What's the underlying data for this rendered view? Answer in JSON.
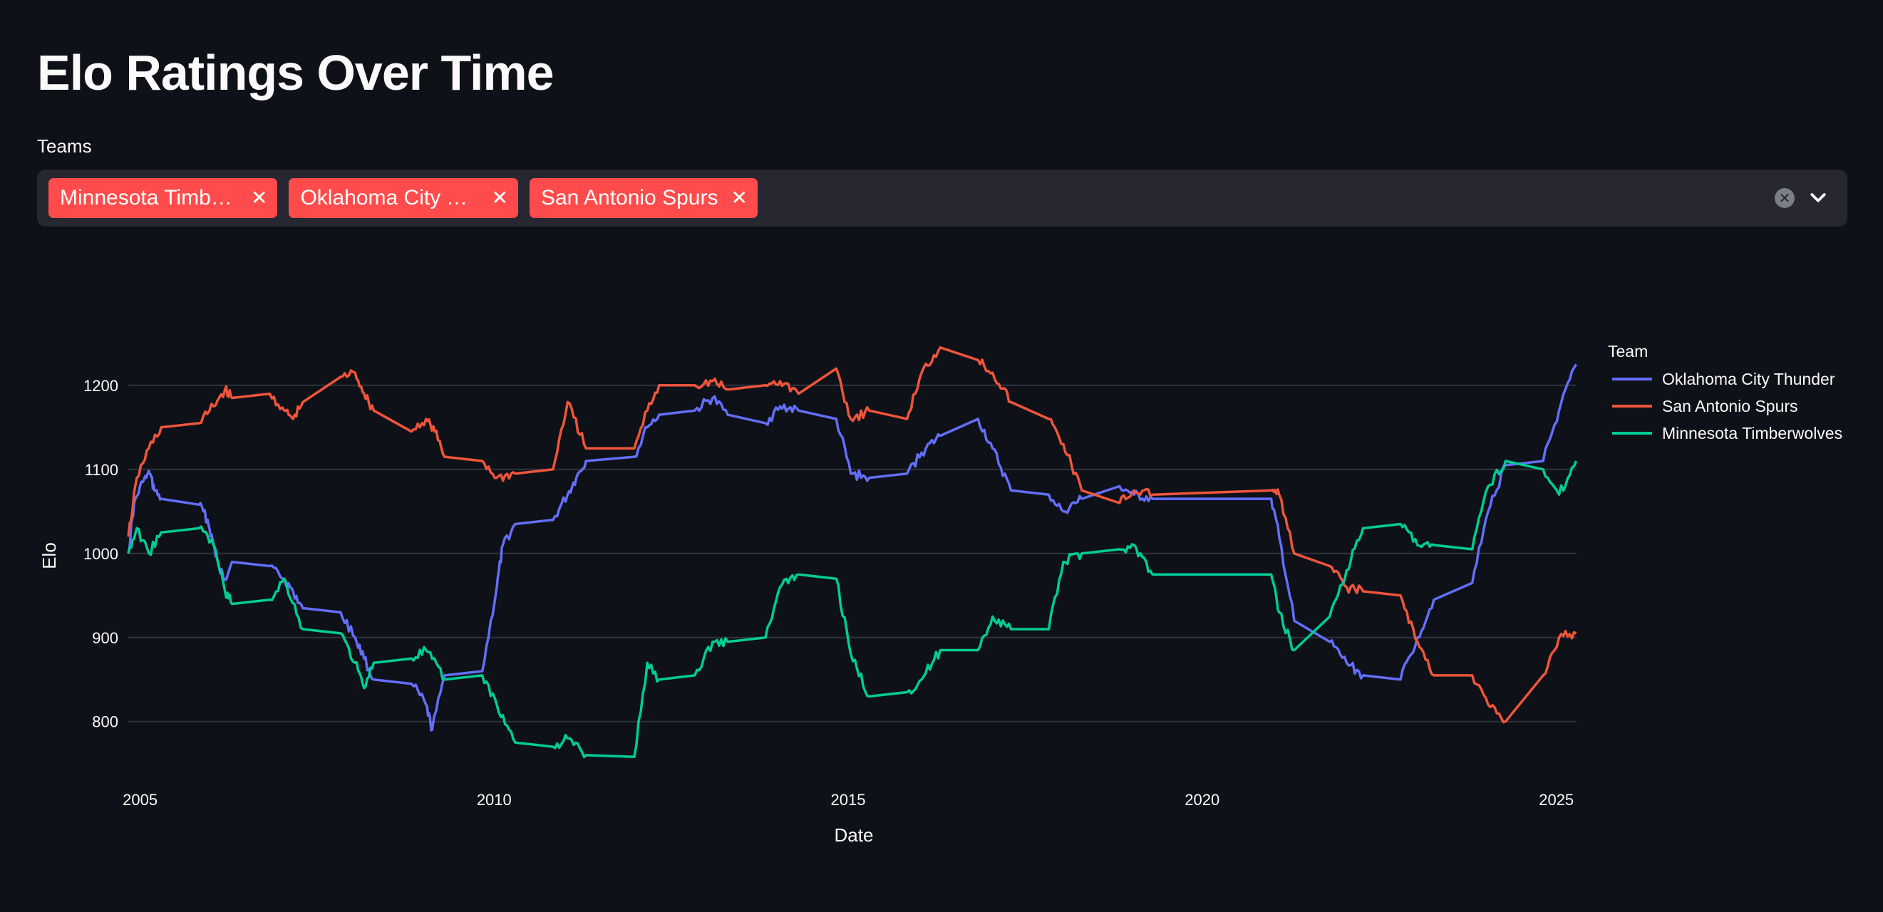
{
  "page": {
    "title": "Elo Ratings Over Time"
  },
  "teams_select": {
    "label": "Teams",
    "selected": [
      "Minnesota Timberwolves",
      "Oklahoma City Thunder",
      "San Antonio Spurs"
    ],
    "clear_icon": "clear-all-icon",
    "open_icon": "chevron-down-icon"
  },
  "chart_data": {
    "type": "line",
    "title": "",
    "xlabel": "Date",
    "ylabel": "Elo",
    "xlim": [
      "2004-11-01",
      "2025-04-15"
    ],
    "ylim": [
      743,
      1260
    ],
    "x_ticks": [
      "2005",
      "2010",
      "2015",
      "2020",
      "2025"
    ],
    "y_ticks": [
      800,
      900,
      1000,
      1100,
      1200
    ],
    "grid": true,
    "legend": {
      "title": "Team",
      "position": "right"
    },
    "series": [
      {
        "name": "Oklahoma City Thunder",
        "color": "#636efa",
        "points": [
          [
            "2004-11-01",
            1000
          ],
          [
            "2004-12-01",
            1060
          ],
          [
            "2005-01-15",
            1085
          ],
          [
            "2005-02-20",
            1095
          ],
          [
            "2005-03-15",
            1075
          ],
          [
            "2005-04-20",
            1065
          ],
          [
            "2005-11-01",
            1058
          ],
          [
            "2005-12-15",
            1040
          ],
          [
            "2006-01-15",
            1010
          ],
          [
            "2006-02-15",
            980
          ],
          [
            "2006-03-15",
            970
          ],
          [
            "2006-04-20",
            990
          ],
          [
            "2006-11-01",
            985
          ],
          [
            "2007-01-15",
            970
          ],
          [
            "2007-03-01",
            955
          ],
          [
            "2007-04-20",
            935
          ],
          [
            "2007-11-01",
            930
          ],
          [
            "2008-01-15",
            900
          ],
          [
            "2008-03-01",
            875
          ],
          [
            "2008-04-20",
            850
          ],
          [
            "2008-11-01",
            845
          ],
          [
            "2009-01-15",
            820
          ],
          [
            "2009-02-15",
            790
          ],
          [
            "2009-04-20",
            855
          ],
          [
            "2009-11-01",
            860
          ],
          [
            "2010-01-15",
            960
          ],
          [
            "2010-02-15",
            1010
          ],
          [
            "2010-04-20",
            1035
          ],
          [
            "2010-11-01",
            1040
          ],
          [
            "2011-01-15",
            1070
          ],
          [
            "2011-03-01",
            1090
          ],
          [
            "2011-04-20",
            1110
          ],
          [
            "2011-12-25",
            1115
          ],
          [
            "2012-03-01",
            1150
          ],
          [
            "2012-05-01",
            1165
          ],
          [
            "2012-11-01",
            1170
          ],
          [
            "2013-02-01",
            1185
          ],
          [
            "2013-04-20",
            1165
          ],
          [
            "2013-11-01",
            1155
          ],
          [
            "2014-01-15",
            1175
          ],
          [
            "2014-04-20",
            1170
          ],
          [
            "2014-11-01",
            1160
          ],
          [
            "2015-01-15",
            1095
          ],
          [
            "2015-04-20",
            1090
          ],
          [
            "2015-11-01",
            1095
          ],
          [
            "2016-01-15",
            1120
          ],
          [
            "2016-04-20",
            1140
          ],
          [
            "2016-11-01",
            1160
          ],
          [
            "2017-01-15",
            1125
          ],
          [
            "2017-04-20",
            1075
          ],
          [
            "2017-11-01",
            1070
          ],
          [
            "2018-01-15",
            1050
          ],
          [
            "2018-04-20",
            1065
          ],
          [
            "2018-11-01",
            1080
          ],
          [
            "2019-01-15",
            1070
          ],
          [
            "2019-04-20",
            1065
          ],
          [
            "2020-12-22",
            1065
          ],
          [
            "2021-02-01",
            1020
          ],
          [
            "2021-04-20",
            920
          ],
          [
            "2021-10-20",
            895
          ],
          [
            "2022-01-15",
            870
          ],
          [
            "2022-04-10",
            855
          ],
          [
            "2022-10-20",
            850
          ],
          [
            "2023-01-15",
            900
          ],
          [
            "2023-04-10",
            945
          ],
          [
            "2023-10-25",
            965
          ],
          [
            "2024-01-15",
            1050
          ],
          [
            "2024-04-14",
            1105
          ],
          [
            "2024-10-25",
            1110
          ],
          [
            "2025-01-15",
            1170
          ],
          [
            "2025-04-13",
            1225
          ]
        ]
      },
      {
        "name": "San Antonio Spurs",
        "color": "#ef553b",
        "points": [
          [
            "2004-11-01",
            1020
          ],
          [
            "2004-12-15",
            1090
          ],
          [
            "2005-02-15",
            1125
          ],
          [
            "2005-04-20",
            1150
          ],
          [
            "2005-11-01",
            1155
          ],
          [
            "2006-01-15",
            1175
          ],
          [
            "2006-03-15",
            1195
          ],
          [
            "2006-04-20",
            1185
          ],
          [
            "2006-11-01",
            1190
          ],
          [
            "2007-01-15",
            1170
          ],
          [
            "2007-03-01",
            1160
          ],
          [
            "2007-04-20",
            1180
          ],
          [
            "2007-11-01",
            1210
          ],
          [
            "2008-01-15",
            1215
          ],
          [
            "2008-03-01",
            1190
          ],
          [
            "2008-04-20",
            1170
          ],
          [
            "2008-11-01",
            1145
          ],
          [
            "2009-01-15",
            1160
          ],
          [
            "2009-03-01",
            1145
          ],
          [
            "2009-04-20",
            1115
          ],
          [
            "2009-11-01",
            1110
          ],
          [
            "2010-01-15",
            1090
          ],
          [
            "2010-04-20",
            1095
          ],
          [
            "2010-11-01",
            1100
          ],
          [
            "2011-01-15",
            1180
          ],
          [
            "2011-04-20",
            1125
          ],
          [
            "2011-12-25",
            1125
          ],
          [
            "2012-03-01",
            1170
          ],
          [
            "2012-05-01",
            1200
          ],
          [
            "2012-11-01",
            1200
          ],
          [
            "2013-02-01",
            1205
          ],
          [
            "2013-04-20",
            1195
          ],
          [
            "2013-11-01",
            1200
          ],
          [
            "2014-01-15",
            1205
          ],
          [
            "2014-04-20",
            1190
          ],
          [
            "2014-11-01",
            1220
          ],
          [
            "2015-01-15",
            1160
          ],
          [
            "2015-04-20",
            1170
          ],
          [
            "2015-11-01",
            1160
          ],
          [
            "2016-01-15",
            1215
          ],
          [
            "2016-04-20",
            1245
          ],
          [
            "2016-11-01",
            1230
          ],
          [
            "2017-01-15",
            1215
          ],
          [
            "2017-04-20",
            1180
          ],
          [
            "2017-11-01",
            1160
          ],
          [
            "2018-01-15",
            1130
          ],
          [
            "2018-04-20",
            1075
          ],
          [
            "2018-11-01",
            1060
          ],
          [
            "2019-01-15",
            1075
          ],
          [
            "2019-04-20",
            1070
          ],
          [
            "2020-12-22",
            1075
          ],
          [
            "2021-02-01",
            1070
          ],
          [
            "2021-04-20",
            1000
          ],
          [
            "2021-10-20",
            985
          ],
          [
            "2022-01-15",
            960
          ],
          [
            "2022-04-10",
            955
          ],
          [
            "2022-10-20",
            950
          ],
          [
            "2023-01-15",
            895
          ],
          [
            "2023-04-10",
            855
          ],
          [
            "2023-10-25",
            855
          ],
          [
            "2024-01-15",
            820
          ],
          [
            "2024-04-14",
            800
          ],
          [
            "2024-10-25",
            855
          ],
          [
            "2025-01-15",
            900
          ],
          [
            "2025-04-13",
            905
          ]
        ]
      },
      {
        "name": "Minnesota Timberwolves",
        "color": "#00cc96",
        "points": [
          [
            "2004-11-01",
            1000
          ],
          [
            "2004-12-15",
            1030
          ],
          [
            "2005-02-15",
            1000
          ],
          [
            "2005-04-20",
            1025
          ],
          [
            "2005-11-01",
            1030
          ],
          [
            "2006-01-15",
            1010
          ],
          [
            "2006-03-15",
            955
          ],
          [
            "2006-04-20",
            940
          ],
          [
            "2006-11-01",
            945
          ],
          [
            "2007-01-15",
            970
          ],
          [
            "2007-04-20",
            910
          ],
          [
            "2007-11-01",
            905
          ],
          [
            "2008-01-15",
            870
          ],
          [
            "2008-03-01",
            840
          ],
          [
            "2008-04-20",
            870
          ],
          [
            "2008-11-01",
            875
          ],
          [
            "2009-01-15",
            885
          ],
          [
            "2009-04-20",
            850
          ],
          [
            "2009-11-01",
            855
          ],
          [
            "2010-01-15",
            820
          ],
          [
            "2010-04-20",
            775
          ],
          [
            "2010-11-01",
            770
          ],
          [
            "2011-01-15",
            780
          ],
          [
            "2011-04-20",
            760
          ],
          [
            "2011-12-25",
            758
          ],
          [
            "2012-03-01",
            870
          ],
          [
            "2012-05-01",
            850
          ],
          [
            "2012-11-01",
            855
          ],
          [
            "2013-02-01",
            895
          ],
          [
            "2013-04-20",
            895
          ],
          [
            "2013-11-01",
            900
          ],
          [
            "2014-01-15",
            960
          ],
          [
            "2014-04-20",
            975
          ],
          [
            "2014-11-01",
            970
          ],
          [
            "2015-01-15",
            880
          ],
          [
            "2015-04-20",
            830
          ],
          [
            "2015-11-01",
            835
          ],
          [
            "2016-01-15",
            850
          ],
          [
            "2016-04-20",
            885
          ],
          [
            "2016-11-01",
            885
          ],
          [
            "2017-01-15",
            925
          ],
          [
            "2017-04-20",
            910
          ],
          [
            "2017-11-01",
            910
          ],
          [
            "2018-01-15",
            990
          ],
          [
            "2018-04-20",
            1000
          ],
          [
            "2018-11-01",
            1005
          ],
          [
            "2019-01-15",
            1010
          ],
          [
            "2019-04-20",
            975
          ],
          [
            "2020-12-22",
            975
          ],
          [
            "2021-02-01",
            930
          ],
          [
            "2021-04-20",
            885
          ],
          [
            "2021-10-20",
            925
          ],
          [
            "2022-01-15",
            980
          ],
          [
            "2022-04-10",
            1030
          ],
          [
            "2022-10-20",
            1035
          ],
          [
            "2023-01-15",
            1010
          ],
          [
            "2023-04-10",
            1010
          ],
          [
            "2023-10-25",
            1005
          ],
          [
            "2024-01-15",
            1080
          ],
          [
            "2024-04-14",
            1110
          ],
          [
            "2024-10-25",
            1100
          ],
          [
            "2025-01-15",
            1070
          ],
          [
            "2025-04-13",
            1110
          ]
        ]
      }
    ]
  }
}
